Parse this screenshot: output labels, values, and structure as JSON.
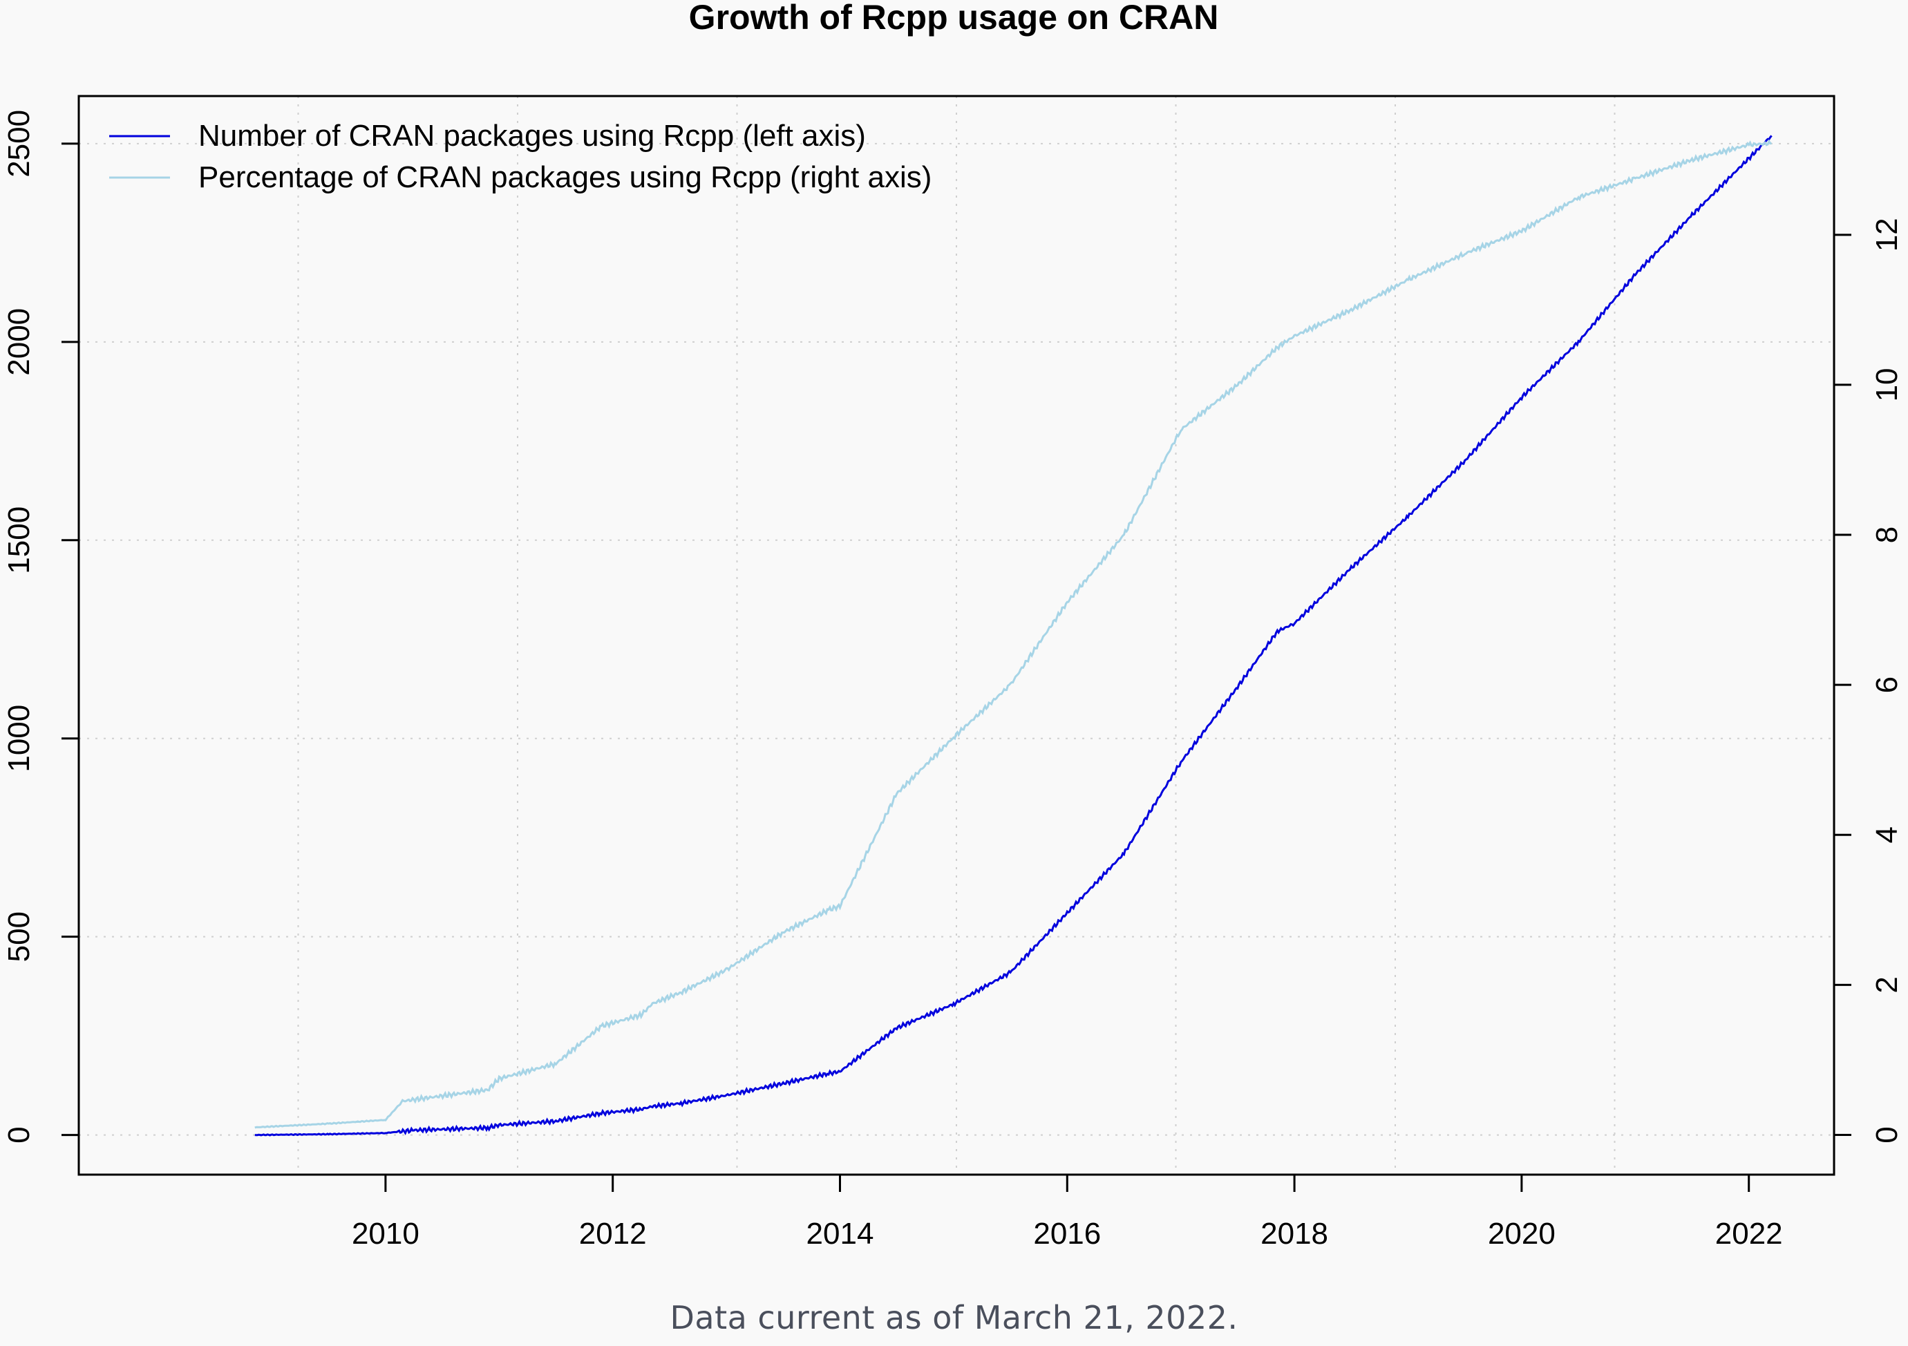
{
  "chart_data": {
    "type": "line",
    "title": "Growth of Rcpp usage on CRAN",
    "xlabel": "",
    "ylabel": "",
    "x_ticks": [
      2010,
      2012,
      2014,
      2016,
      2018,
      2020,
      2022
    ],
    "y_left_ticks": [
      0,
      500,
      1000,
      1500,
      2000,
      2500
    ],
    "y_right_ticks": [
      0,
      2,
      4,
      6,
      8,
      10,
      12
    ],
    "xlim": [
      2007.3,
      2022.75
    ],
    "ylim_left": [
      -100,
      2620
    ],
    "ylim_right": [
      -0.53,
      13.85
    ],
    "grid": true,
    "legend_position": "top-left",
    "series": [
      {
        "name": "Number of CRAN packages using Rcpp (left axis)",
        "axis": "left",
        "color": "#0000dd",
        "x": [
          2008.85,
          2009.5,
          2010.0,
          2010.25,
          2010.9,
          2011.0,
          2011.5,
          2011.9,
          2012.25,
          2012.35,
          2012.6,
          2013.0,
          2013.5,
          2013.9,
          2014.0,
          2014.5,
          2015.0,
          2015.5,
          2016.0,
          2016.5,
          2017.0,
          2017.5,
          2017.85,
          2018.0,
          2018.5,
          2019.0,
          2019.5,
          2020.0,
          2020.5,
          2021.0,
          2021.5,
          2022.2
        ],
        "y": [
          0,
          2,
          5,
          12,
          18,
          25,
          35,
          55,
          65,
          72,
          80,
          100,
          130,
          155,
          160,
          270,
          330,
          410,
          560,
          710,
          940,
          1130,
          1270,
          1290,
          1430,
          1560,
          1700,
          1860,
          2000,
          2170,
          2320,
          2520
        ]
      },
      {
        "name": "Percentage of CRAN packages using Rcpp (right axis)",
        "axis": "right",
        "color": "#a6d4e6",
        "x": [
          2008.85,
          2009.5,
          2010.0,
          2010.15,
          2010.9,
          2011.0,
          2011.5,
          2011.9,
          2012.25,
          2012.35,
          2012.6,
          2013.0,
          2013.5,
          2013.9,
          2014.0,
          2014.5,
          2015.0,
          2015.5,
          2016.0,
          2016.5,
          2017.0,
          2017.5,
          2017.85,
          2018.0,
          2018.5,
          2019.0,
          2019.5,
          2020.0,
          2020.5,
          2021.0,
          2021.5,
          2022.0,
          2022.2
        ],
        "y": [
          0.1,
          0.15,
          0.2,
          0.45,
          0.6,
          0.75,
          0.95,
          1.45,
          1.6,
          1.75,
          1.9,
          2.2,
          2.7,
          3.0,
          3.05,
          4.55,
          5.3,
          6.0,
          7.1,
          8.0,
          9.4,
          10.0,
          10.5,
          10.65,
          11.0,
          11.4,
          11.75,
          12.05,
          12.5,
          12.75,
          13.0,
          13.2,
          13.22
        ]
      }
    ],
    "caption": "Data current as of March 21, 2022."
  }
}
